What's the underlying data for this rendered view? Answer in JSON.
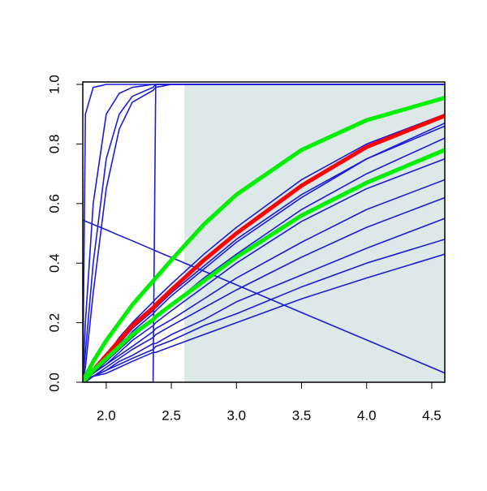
{
  "chart_data": {
    "type": "line",
    "x": [
      1.82,
      1.84,
      1.9,
      2.0,
      2.1,
      2.2,
      2.36,
      2.38,
      2.5,
      2.75,
      3.0,
      3.5,
      4.0,
      4.6
    ],
    "xlim": [
      1.82,
      4.6
    ],
    "ylim": [
      0,
      1
    ],
    "xticks": [
      {
        "value": 2,
        "label": "2.0"
      },
      2.5,
      {
        "value": 3,
        "label": "3.0"
      },
      3.5,
      {
        "value": 4,
        "label": "4.0"
      },
      4.5
    ],
    "yticks": [
      {
        "value": 0,
        "label": "0.0"
      },
      0.2,
      0.4,
      0.6,
      0.8,
      {
        "value": 1,
        "label": "1.0"
      }
    ],
    "band": {
      "x": [
        2.6,
        4.6
      ],
      "color": "#dde9e9"
    },
    "series": [
      {
        "color": "#1c1cd6",
        "width": 1.6,
        "values": [
          0,
          0.9,
          0.99,
          1,
          1,
          1,
          1,
          1,
          1,
          1,
          1,
          1,
          1,
          1
        ]
      },
      {
        "color": "#1c1cd6",
        "width": 1.6,
        "values": [
          0,
          0.2,
          0.6,
          0.9,
          0.97,
          0.99,
          1,
          1,
          1,
          1,
          1,
          1,
          1,
          1
        ]
      },
      {
        "color": "#1c1cd6",
        "width": 1.6,
        "values": [
          0,
          0.1,
          0.4,
          0.75,
          0.9,
          0.96,
          0.99,
          1,
          1,
          1,
          1,
          1,
          1,
          1
        ]
      },
      {
        "color": "#1c1cd6",
        "width": 1.6,
        "values": [
          0,
          0.05,
          0.3,
          0.65,
          0.85,
          0.94,
          0.98,
          0.99,
          1,
          1,
          1,
          1,
          1,
          1
        ]
      },
      {
        "color": "#1c1cd6",
        "width": 1.6,
        "values": [
          0,
          0,
          0,
          0,
          0,
          0,
          0,
          1,
          1,
          1,
          1,
          1,
          1,
          1
        ]
      },
      {
        "color": "#1c1cd6",
        "width": 1.6,
        "values": [
          0.545,
          0.541,
          0.53,
          0.512,
          0.493,
          0.475,
          0.445,
          0.441,
          0.419,
          0.373,
          0.327,
          0.234,
          0.142,
          0.031
        ]
      },
      {
        "color": "#1c1cd6",
        "width": 1.6,
        "values": [
          0,
          0.01,
          0.04,
          0.09,
          0.15,
          0.2,
          0.27,
          0.28,
          0.33,
          0.43,
          0.52,
          0.68,
          0.8,
          0.9
        ]
      },
      {
        "color": "#1c1cd6",
        "width": 1.6,
        "values": [
          0,
          0.01,
          0.03,
          0.08,
          0.13,
          0.18,
          0.24,
          0.25,
          0.3,
          0.39,
          0.48,
          0.63,
          0.75,
          0.86
        ]
      },
      {
        "color": "#1c1cd6",
        "width": 1.6,
        "values": [
          0,
          0.01,
          0.03,
          0.07,
          0.11,
          0.15,
          0.21,
          0.22,
          0.26,
          0.35,
          0.43,
          0.58,
          0.7,
          0.82
        ]
      },
      {
        "color": "#1c1cd6",
        "width": 1.6,
        "values": [
          0,
          0.01,
          0.03,
          0.06,
          0.1,
          0.14,
          0.19,
          0.2,
          0.24,
          0.32,
          0.4,
          0.54,
          0.65,
          0.75
        ]
      },
      {
        "color": "#1c1cd6",
        "width": 1.6,
        "values": [
          0,
          0.01,
          0.03,
          0.06,
          0.09,
          0.12,
          0.17,
          0.18,
          0.21,
          0.28,
          0.35,
          0.47,
          0.58,
          0.68
        ]
      },
      {
        "color": "#1c1cd6",
        "width": 1.6,
        "values": [
          0,
          0.01,
          0.02,
          0.05,
          0.08,
          0.11,
          0.15,
          0.16,
          0.19,
          0.25,
          0.31,
          0.42,
          0.52,
          0.62
        ]
      },
      {
        "color": "#1c1cd6",
        "width": 1.6,
        "values": [
          0,
          0.01,
          0.02,
          0.04,
          0.07,
          0.09,
          0.13,
          0.13,
          0.16,
          0.21,
          0.27,
          0.36,
          0.45,
          0.55
        ]
      },
      {
        "color": "#1c1cd6",
        "width": 1.6,
        "values": [
          0,
          0.01,
          0.02,
          0.04,
          0.06,
          0.08,
          0.11,
          0.12,
          0.14,
          0.19,
          0.23,
          0.32,
          0.4,
          0.48
        ]
      },
      {
        "color": "#1c1cd6",
        "width": 1.6,
        "values": [
          0,
          0,
          0.02,
          0.03,
          0.05,
          0.07,
          0.1,
          0.1,
          0.12,
          0.16,
          0.2,
          0.28,
          0.35,
          0.43
        ]
      },
      {
        "color": "#1c1cd6",
        "width": 1.6,
        "values": [
          0,
          0.01,
          0.03,
          0.07,
          0.12,
          0.17,
          0.23,
          0.24,
          0.29,
          0.38,
          0.47,
          0.62,
          0.75,
          0.87
        ]
      },
      {
        "color": "#ff0000",
        "width": 5,
        "values": [
          0,
          0.01,
          0.04,
          0.09,
          0.14,
          0.19,
          0.25,
          0.26,
          0.31,
          0.41,
          0.5,
          0.66,
          0.79,
          0.895
        ]
      },
      {
        "color": "#00ee00",
        "width": 5,
        "values": [
          0,
          0.02,
          0.07,
          0.14,
          0.2,
          0.26,
          0.34,
          0.35,
          0.41,
          0.53,
          0.63,
          0.78,
          0.88,
          0.955
        ]
      },
      {
        "color": "#00ee00",
        "width": 5,
        "values": [
          0,
          0.01,
          0.04,
          0.08,
          0.12,
          0.16,
          0.21,
          0.22,
          0.26,
          0.34,
          0.42,
          0.56,
          0.67,
          0.78
        ]
      }
    ]
  }
}
